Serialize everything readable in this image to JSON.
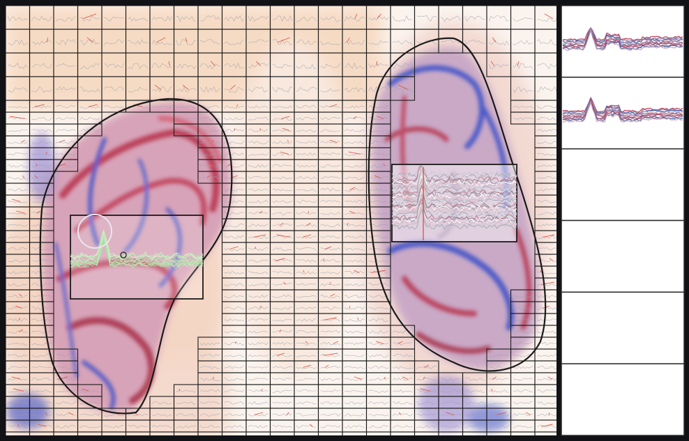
{
  "app": {
    "title": ""
  },
  "colors": {
    "frame": "#111216",
    "grid_line": "#1a1a1a",
    "tissue_red": "#b8324b",
    "tissue_blue": "#3a4fc9",
    "tissue_pink": "#d88aa0",
    "background_peach": "#f6dcc4",
    "roi_green": "#8fe08f",
    "trace_gray": "#8b8f99",
    "spike_red": "#e24d3e",
    "panel_bg": "#ffffff",
    "series_red": "#b8324b",
    "series_blue": "#345aa8",
    "series_mauve": "#8b6c9b"
  },
  "main_view": {
    "outlines": [
      "left-organ-outline",
      "right-organ-outline"
    ],
    "selected_rois": [
      "roi-left",
      "roi-right"
    ],
    "cursor": "ring-cursor"
  },
  "side_panel": {
    "rows": [
      {
        "label": "",
        "has_trace": true
      },
      {
        "label": "",
        "has_trace": true
      },
      {
        "label": "",
        "has_trace": false
      },
      {
        "label": "",
        "has_trace": false
      },
      {
        "label": "",
        "has_trace": false
      },
      {
        "label": "",
        "has_trace": false
      }
    ]
  }
}
